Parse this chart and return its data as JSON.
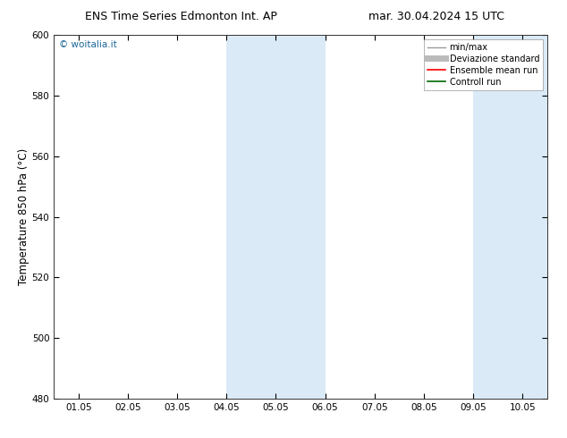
{
  "title_left": "ENS Time Series Edmonton Int. AP",
  "title_right": "mar. 30.04.2024 15 UTC",
  "ylabel": "Temperature 850 hPa (°C)",
  "ylim": [
    480,
    600
  ],
  "yticks": [
    480,
    500,
    520,
    540,
    560,
    580,
    600
  ],
  "xtick_labels": [
    "01.05",
    "02.05",
    "03.05",
    "04.05",
    "05.05",
    "06.05",
    "07.05",
    "08.05",
    "09.05",
    "10.05"
  ],
  "xtick_positions": [
    0,
    1,
    2,
    3,
    4,
    5,
    6,
    7,
    8,
    9
  ],
  "xlim": [
    -0.5,
    9.5
  ],
  "shade_bands": [
    {
      "start": 3.0,
      "end": 5.0
    },
    {
      "start": 8.0,
      "end": 9.5
    }
  ],
  "shade_color": "#daeaf7",
  "background_color": "#ffffff",
  "watermark_text": "© woitalia.it",
  "watermark_color": "#1a6699",
  "legend_entries": [
    {
      "label": "min/max",
      "color": "#999999",
      "lw": 1.0
    },
    {
      "label": "Deviazione standard",
      "color": "#bbbbbb",
      "lw": 5
    },
    {
      "label": "Ensemble mean run",
      "color": "#ff0000",
      "lw": 1.2
    },
    {
      "label": "Controll run",
      "color": "#006600",
      "lw": 1.2
    }
  ],
  "title_fontsize": 9,
  "tick_fontsize": 7.5,
  "ylabel_fontsize": 8.5,
  "legend_fontsize": 7
}
